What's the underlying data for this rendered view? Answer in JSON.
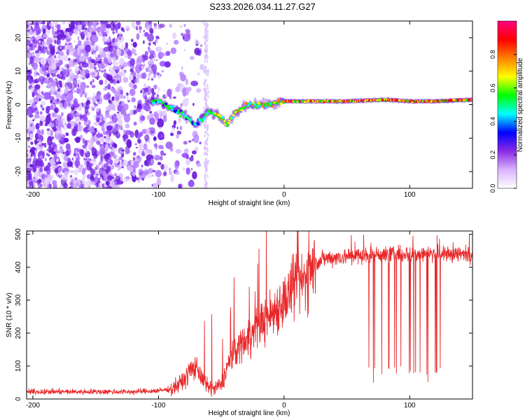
{
  "title": "S233.2026.034.11.27.G27",
  "colors": {
    "snr_line": "#e8282a",
    "axis": "#000000",
    "background": "#ffffff"
  },
  "chart_data": [
    {
      "type": "heatmap",
      "name": "spectrogram",
      "xlabel": "Height of straight line (km)",
      "ylabel": "Frequency (Hz)",
      "xlim": [
        -205,
        150
      ],
      "ylim": [
        -25,
        25
      ],
      "xticks": [
        -200,
        -100,
        0,
        100
      ],
      "yticks": [
        -20,
        -10,
        0,
        10,
        20
      ],
      "colorbar": {
        "label": "Normalized spectral amplitude",
        "range": [
          0.0,
          1.0
        ],
        "ticks": [
          "0.0",
          "0.2",
          "0.4",
          "0.6",
          "0.8"
        ],
        "colormap": [
          "#ffffff",
          "#d9b3ff",
          "#8a2be2",
          "#0000ff",
          "#00ffff",
          "#00ff00",
          "#ffff00",
          "#ff8000",
          "#ff0000",
          "#ff0080"
        ]
      },
      "ridge": {
        "x": [
          -100,
          -90,
          -80,
          -70,
          -60,
          -50,
          -45,
          -40,
          -30,
          -20,
          -10,
          0,
          20,
          50,
          80,
          100,
          120,
          150
        ],
        "y": [
          1,
          -1,
          -3,
          -6,
          -2,
          -4,
          -6,
          -3,
          0,
          0,
          0,
          1,
          1,
          1,
          1.5,
          1,
          1,
          1.5
        ]
      }
    },
    {
      "type": "line",
      "name": "snr",
      "xlabel": "Height of straight line (km)",
      "ylabel": "SNR (10 * v/v)",
      "xlim": [
        -205,
        150
      ],
      "ylim": [
        0,
        510
      ],
      "xticks": [
        -200,
        -100,
        0,
        100
      ],
      "yticks": [
        0,
        100,
        200,
        300,
        400,
        500
      ],
      "trend": {
        "x": [
          -205,
          -120,
          -100,
          -90,
          -80,
          -75,
          -70,
          -65,
          -60,
          -55,
          -50,
          -45,
          -40,
          -35,
          -30,
          -25,
          -20,
          -15,
          -10,
          -5,
          0,
          5,
          10,
          15,
          20,
          25,
          30,
          40,
          60,
          80,
          100,
          120,
          150
        ],
        "y": [
          22,
          22,
          25,
          30,
          55,
          85,
          100,
          55,
          35,
          30,
          45,
          100,
          140,
          165,
          185,
          200,
          230,
          240,
          260,
          280,
          300,
          320,
          340,
          360,
          385,
          410,
          425,
          430,
          435,
          440,
          440,
          440,
          440
        ]
      },
      "dropouts_x_range": [
        57,
        130
      ],
      "dropout_level": 75
    }
  ]
}
